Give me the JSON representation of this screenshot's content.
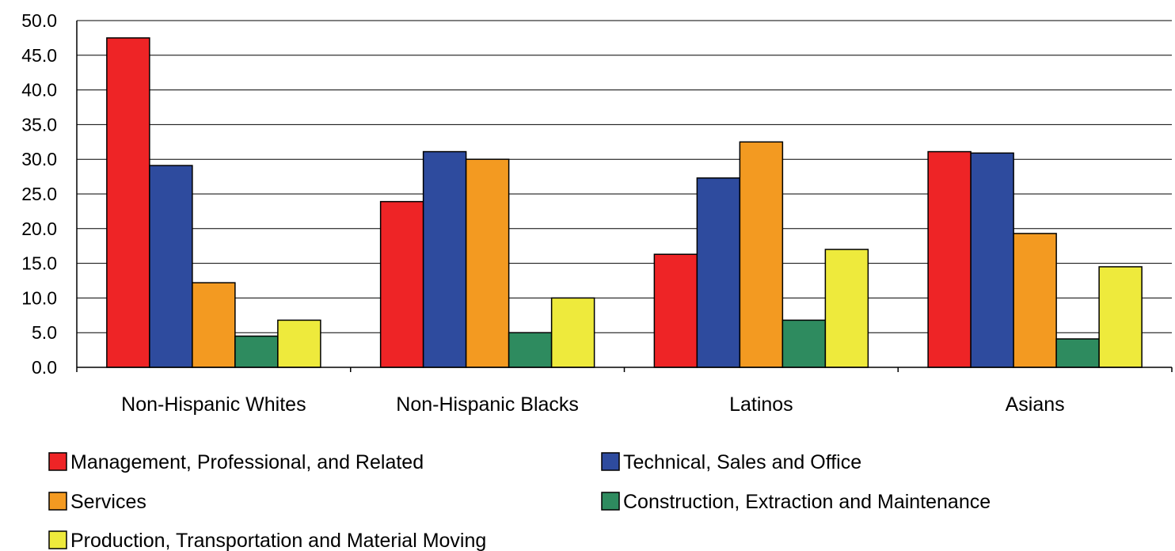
{
  "chart_data": {
    "type": "bar",
    "title": "",
    "xlabel": "",
    "ylabel": "",
    "ylim": [
      0,
      50
    ],
    "ytick_step": 5,
    "ytick_labels": [
      "0.0",
      "5.0",
      "10.0",
      "15.0",
      "20.0",
      "25.0",
      "30.0",
      "35.0",
      "40.0",
      "45.0",
      "50.0"
    ],
    "grid": "horizontal",
    "legend_position": "bottom",
    "categories": [
      "Non-Hispanic Whites",
      "Non-Hispanic Blacks",
      "Latinos",
      "Asians"
    ],
    "series": [
      {
        "name": "Management, Professional, and Related",
        "color": "#ee2426",
        "values": [
          47.5,
          23.9,
          16.3,
          31.1
        ]
      },
      {
        "name": "Technical, Sales and Office",
        "color": "#2e4b9e",
        "values": [
          29.1,
          31.1,
          27.3,
          30.9
        ]
      },
      {
        "name": "Services",
        "color": "#f39a21",
        "values": [
          12.2,
          30.0,
          32.5,
          19.3
        ]
      },
      {
        "name": "Construction, Extraction and Maintenance",
        "color": "#2e8b5f",
        "values": [
          4.5,
          5.0,
          6.8,
          4.1
        ]
      },
      {
        "name": "Production, Transportation and Material Moving",
        "color": "#eeea3c",
        "values": [
          6.8,
          10.0,
          17.0,
          14.5
        ]
      }
    ]
  }
}
